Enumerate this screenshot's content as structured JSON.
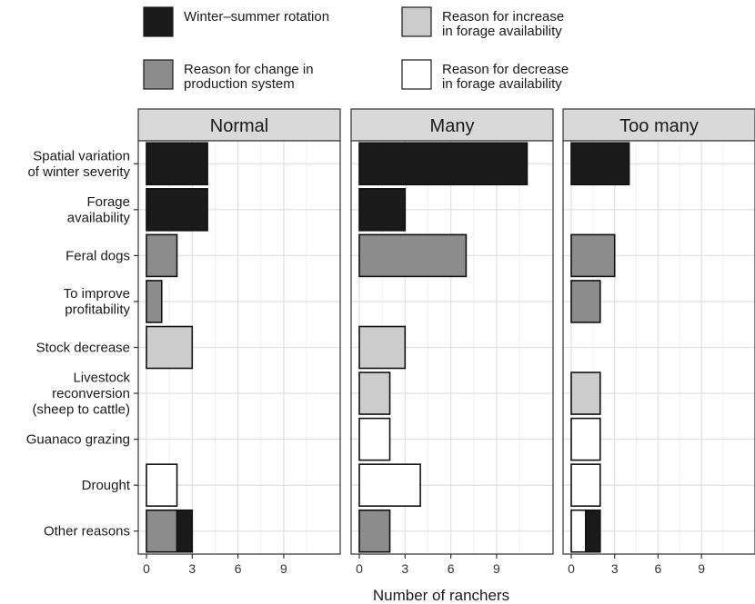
{
  "chart_data": {
    "type": "bar",
    "orientation": "horizontal",
    "stacked": true,
    "xlabel": "Number of ranchers",
    "x_ticks": [
      0,
      3,
      6,
      9
    ],
    "xlim": [
      0,
      12.7
    ],
    "grid": true,
    "legend_position": "top",
    "legend": [
      {
        "key": "rotation",
        "lines": [
          "Winter–summer rotation"
        ],
        "color": "#1a1a1a"
      },
      {
        "key": "increase",
        "lines": [
          "Reason for increase",
          "in forage availability"
        ],
        "color": "#cccccc"
      },
      {
        "key": "change",
        "lines": [
          "Reason for change in",
          "production system"
        ],
        "color": "#8c8c8c"
      },
      {
        "key": "decrease",
        "lines": [
          "Reason for decrease",
          "in forage availability"
        ],
        "color": "#ffffff"
      }
    ],
    "categories": [
      {
        "lines": [
          "Spatial variation",
          "of winter severity"
        ]
      },
      {
        "lines": [
          "Forage",
          "availability"
        ]
      },
      {
        "lines": [
          "Feral dogs"
        ]
      },
      {
        "lines": [
          "To improve",
          "profitability"
        ]
      },
      {
        "lines": [
          "Stock decrease"
        ]
      },
      {
        "lines": [
          "Livestock",
          "reconversion",
          "(sheep to cattle)"
        ]
      },
      {
        "lines": [
          "Guanaco grazing"
        ]
      },
      {
        "lines": [
          "Drought"
        ]
      },
      {
        "lines": [
          "Other reasons"
        ]
      }
    ],
    "panels": [
      {
        "title": "Normal",
        "bars": [
          [
            {
              "key": "rotation",
              "value": 4
            }
          ],
          [
            {
              "key": "rotation",
              "value": 4
            }
          ],
          [
            {
              "key": "change",
              "value": 2
            }
          ],
          [
            {
              "key": "change",
              "value": 1
            }
          ],
          [
            {
              "key": "increase",
              "value": 3
            }
          ],
          [],
          [],
          [
            {
              "key": "decrease",
              "value": 2
            }
          ],
          [
            {
              "key": "change",
              "value": 2
            },
            {
              "key": "rotation",
              "value": 1
            }
          ]
        ]
      },
      {
        "title": "Many",
        "bars": [
          [
            {
              "key": "rotation",
              "value": 11
            }
          ],
          [
            {
              "key": "rotation",
              "value": 3
            }
          ],
          [
            {
              "key": "change",
              "value": 7
            }
          ],
          [],
          [
            {
              "key": "increase",
              "value": 3
            }
          ],
          [
            {
              "key": "increase",
              "value": 2
            }
          ],
          [
            {
              "key": "decrease",
              "value": 2
            }
          ],
          [
            {
              "key": "decrease",
              "value": 4
            }
          ],
          [
            {
              "key": "change",
              "value": 2
            }
          ]
        ]
      },
      {
        "title": "Too many",
        "bars": [
          [
            {
              "key": "rotation",
              "value": 4
            }
          ],
          [],
          [
            {
              "key": "change",
              "value": 3
            }
          ],
          [
            {
              "key": "change",
              "value": 2
            }
          ],
          [],
          [
            {
              "key": "increase",
              "value": 2
            }
          ],
          [
            {
              "key": "decrease",
              "value": 2
            }
          ],
          [
            {
              "key": "decrease",
              "value": 2
            }
          ],
          [
            {
              "key": "decrease",
              "value": 1
            },
            {
              "key": "rotation",
              "value": 1
            }
          ]
        ]
      }
    ]
  }
}
